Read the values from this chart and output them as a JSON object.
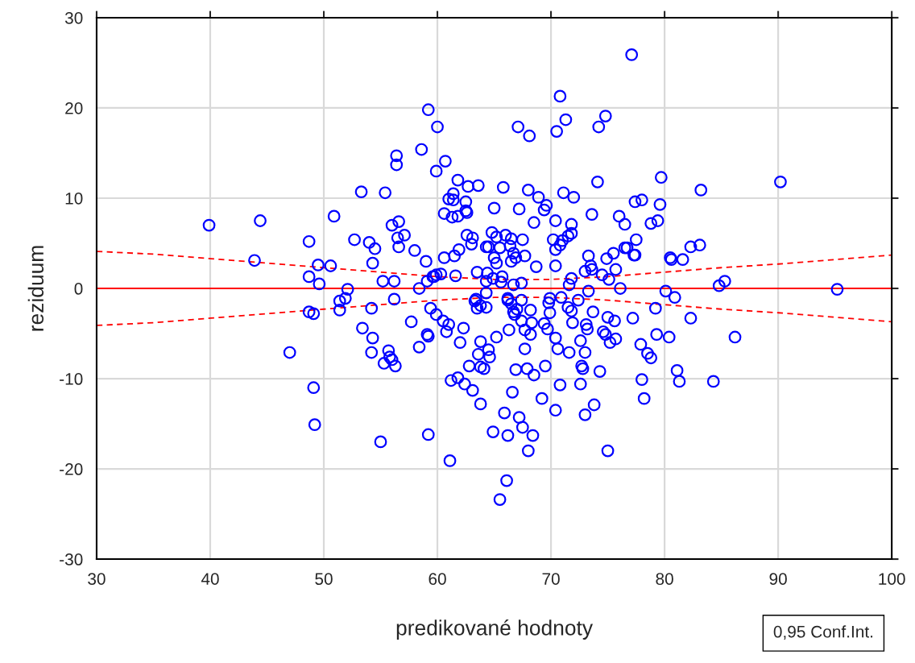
{
  "chart_data": {
    "type": "scatter",
    "xlabel": "predikované hodnoty",
    "ylabel": "reziduum",
    "xlim": [
      30,
      100
    ],
    "xticks": [
      30,
      40,
      50,
      60,
      70,
      80,
      90,
      100
    ],
    "ylim": [
      -30,
      30
    ],
    "yticks": [
      -30,
      -20,
      -10,
      0,
      10,
      20,
      30
    ],
    "grid": true,
    "annotations": [
      "0,95 Conf.Int."
    ],
    "series": [
      {
        "color": "#0000ff",
        "marker": "circle",
        "x": [
          39.9,
          44.4,
          43.9,
          48.7,
          48.7,
          49.5,
          49.6,
          50.6,
          50.9,
          47.0,
          48.7,
          49.1,
          49.1,
          49.2,
          51.4,
          51.4,
          51.9,
          52.1,
          52.7,
          53.3,
          53.4,
          54.0,
          54.3,
          54.5,
          54.2,
          54.3,
          54.2,
          55.0,
          55.4,
          55.2,
          55.3,
          55.8,
          55.7,
          56.0,
          56.0,
          56.2,
          56.4,
          56.4,
          56.2,
          56.3,
          56.5,
          56.6,
          56.6,
          57.1,
          57.7,
          58.0,
          58.4,
          58.4,
          58.6,
          59.0,
          59.1,
          59.2,
          59.1,
          59.2,
          59.2,
          59.4,
          59.6,
          59.7,
          59.9,
          59.9,
          60.0,
          59.9,
          60.3,
          60.5,
          60.6,
          60.6,
          60.7,
          60.8,
          61.0,
          61.0,
          61.1,
          61.2,
          61.3,
          61.4,
          61.4,
          61.5,
          61.6,
          61.8,
          61.8,
          61.9,
          61.8,
          62.0,
          62.3,
          62.4,
          62.5,
          62.5,
          62.6,
          62.6,
          62.7,
          62.8,
          63.0,
          63.1,
          63.1,
          63.3,
          63.4,
          63.5,
          63.5,
          63.6,
          63.6,
          63.8,
          63.8,
          63.8,
          63.8,
          64.1,
          64.3,
          64.3,
          64.3,
          64.3,
          64.4,
          64.5,
          64.5,
          64.6,
          64.8,
          64.9,
          64.9,
          65.0,
          65.0,
          65.2,
          65.2,
          65.2,
          65.5,
          65.5,
          65.6,
          65.7,
          65.8,
          65.9,
          66.0,
          66.1,
          66.2,
          66.2,
          66.2,
          66.3,
          66.4,
          66.5,
          66.5,
          66.5,
          66.6,
          66.7,
          66.7,
          66.7,
          66.8,
          66.9,
          66.9,
          67.0,
          67.1,
          67.2,
          67.2,
          67.4,
          67.4,
          67.5,
          67.4,
          67.5,
          67.7,
          67.7,
          67.7,
          67.9,
          68.0,
          68.0,
          68.1,
          68.2,
          68.2,
          68.3,
          68.4,
          68.5,
          68.5,
          68.7,
          68.9,
          69.2,
          69.4,
          69.4,
          69.5,
          69.6,
          69.7,
          69.8,
          69.9,
          69.9,
          70.2,
          70.4,
          70.4,
          70.4,
          70.4,
          70.4,
          70.5,
          70.6,
          70.8,
          70.8,
          70.8,
          70.9,
          71.0,
          71.1,
          71.3,
          71.5,
          71.5,
          71.6,
          71.6,
          71.8,
          71.8,
          71.8,
          71.8,
          71.9,
          72.0,
          72.4,
          72.6,
          72.6,
          72.7,
          72.8,
          73.0,
          73.0,
          73.0,
          73.1,
          73.2,
          73.3,
          73.3,
          73.5,
          73.6,
          73.6,
          73.7,
          73.8,
          74.1,
          74.2,
          74.3,
          74.5,
          74.6,
          74.8,
          74.8,
          74.9,
          75.0,
          75.0,
          75.1,
          75.2,
          75.5,
          75.6,
          75.7,
          75.7,
          76.0,
          76.1,
          76.5,
          76.5,
          76.7,
          77.3,
          77.4,
          77.1,
          77.2,
          77.4,
          77.5,
          77.9,
          78.0,
          78.0,
          78.2,
          78.5,
          78.8,
          78.8,
          79.2,
          79.3,
          79.4,
          79.6,
          79.7,
          80.1,
          80.4,
          80.5,
          80.6,
          80.9,
          81.1,
          81.3,
          81.6,
          82.3,
          82.3,
          83.1,
          83.2,
          84.3,
          84.8,
          85.3,
          86.2,
          90.2,
          95.2
        ],
        "values": [
          7.0,
          7.5,
          3.1,
          5.2,
          1.3,
          2.6,
          0.5,
          2.5,
          8.0,
          -7.1,
          -2.6,
          -2.8,
          -11.0,
          -15.1,
          -1.4,
          -2.4,
          -1.1,
          -0.1,
          5.4,
          10.7,
          -4.4,
          5.1,
          2.8,
          4.4,
          -2.2,
          -5.5,
          -7.1,
          -17.0,
          10.6,
          0.8,
          -8.3,
          -7.6,
          -6.9,
          -7.9,
          7.0,
          0.8,
          14.7,
          13.7,
          -1.2,
          -8.6,
          5.6,
          7.4,
          4.6,
          5.9,
          -3.7,
          4.2,
          0,
          -6.5,
          15.4,
          3.0,
          0.8,
          19.8,
          -5.1,
          -5.3,
          -16.2,
          -2.2,
          1.3,
          1.3,
          1.5,
          13.0,
          17.9,
          -2.9,
          1.6,
          -3.6,
          8.3,
          3.4,
          14.1,
          -4.8,
          -4.0,
          9.9,
          -19.1,
          -10.2,
          7.9,
          10.5,
          9.8,
          3.6,
          1.4,
          8.0,
          12.0,
          4.3,
          -9.9,
          -6.0,
          -4.4,
          -10.6,
          9.6,
          8.6,
          8.4,
          5.9,
          11.3,
          -8.6,
          4.9,
          -11.3,
          5.6,
          -1.4,
          -1.2,
          -2.2,
          1.8,
          -7.3,
          11.4,
          -5.9,
          -1.9,
          -8.7,
          -12.8,
          -8.9,
          4.6,
          0.8,
          -2.1,
          -0.5,
          1.7,
          4.6,
          -6.8,
          -7.6,
          6.2,
          -15.9,
          1.1,
          3.4,
          8.9,
          5.7,
          2.8,
          -5.4,
          -23.4,
          4.5,
          0.7,
          1.3,
          11.2,
          -13.8,
          5.9,
          -21.3,
          -16.3,
          -1.3,
          -1.1,
          -4.6,
          4.7,
          -1.7,
          5.5,
          3.0,
          -11.5,
          3.9,
          -2.6,
          0.4,
          -2.9,
          -9.0,
          3.4,
          -2.3,
          17.9,
          8.8,
          -14.3,
          -3.6,
          0.6,
          5.4,
          -1.3,
          -15.4,
          -6.7,
          3.6,
          -4.6,
          -8.9,
          -18.0,
          10.9,
          16.9,
          -2.4,
          -5.1,
          -3.8,
          -16.3,
          -9.6,
          7.3,
          2.4,
          10.1,
          -12.2,
          8.7,
          -3.9,
          -8.6,
          9.2,
          -4.5,
          -1.6,
          -2.7,
          -1.1,
          5.4,
          7.5,
          2.5,
          4.3,
          -5.5,
          -13.5,
          17.4,
          -6.7,
          21.3,
          4.8,
          -10.7,
          -1.0,
          5.3,
          10.6,
          18.7,
          5.8,
          -2.1,
          -7.1,
          0.4,
          -2.5,
          7.1,
          1.1,
          6.1,
          -3.8,
          10.1,
          -1.3,
          -5.8,
          -10.6,
          -8.6,
          -8.9,
          -14.0,
          -7.1,
          1.9,
          -4.0,
          -4.5,
          -0.3,
          3.6,
          2.5,
          2.1,
          8.2,
          -2.6,
          -12.9,
          11.8,
          17.9,
          -9.2,
          1.5,
          -4.8,
          19.1,
          -5.1,
          3.3,
          -18.0,
          -3.2,
          1.0,
          -6.0,
          3.9,
          -3.6,
          -5.6,
          2.1,
          8.0,
          0,
          7.1,
          4.5,
          4.5,
          3.7,
          3.7,
          25.9,
          -3.3,
          9.6,
          5.4,
          -6.2,
          9.8,
          -10.1,
          -12.2,
          -7.2,
          -7.7,
          7.2,
          -2.2,
          -5.1,
          7.5,
          9.3,
          12.3,
          -0.3,
          -5.4,
          3.4,
          3.2,
          -1.0,
          -9.1,
          -10.3,
          3.2,
          -3.3,
          4.6,
          4.8,
          10.9,
          -10.3,
          0.3,
          0.8,
          -5.4,
          11.8,
          -0.1
        ]
      },
      {
        "type": "line",
        "color": "#ff0000",
        "marker": "none",
        "line_style": "solid",
        "x": [
          30,
          100
        ],
        "values": [
          0,
          0
        ]
      },
      {
        "type": "line",
        "color": "#ff0000",
        "marker": "none",
        "line_style": "dashed",
        "x": [
          30,
          35,
          40,
          45,
          50,
          55,
          60,
          65,
          70,
          75,
          80,
          85,
          90,
          95,
          100
        ],
        "values": [
          4.1,
          3.8,
          3.3,
          2.8,
          2.3,
          1.8,
          1.3,
          1.0,
          1.0,
          1.3,
          1.8,
          2.3,
          2.7,
          3.2,
          3.7
        ]
      },
      {
        "type": "line",
        "color": "#ff0000",
        "marker": "none",
        "line_style": "dashed",
        "x": [
          30,
          35,
          40,
          45,
          50,
          55,
          60,
          65,
          70,
          75,
          80,
          85,
          90,
          95,
          100
        ],
        "values": [
          -4.1,
          -3.8,
          -3.3,
          -2.8,
          -2.3,
          -1.8,
          -1.3,
          -1.0,
          -1.0,
          -1.3,
          -1.8,
          -2.3,
          -2.7,
          -3.2,
          -3.7
        ]
      }
    ]
  }
}
